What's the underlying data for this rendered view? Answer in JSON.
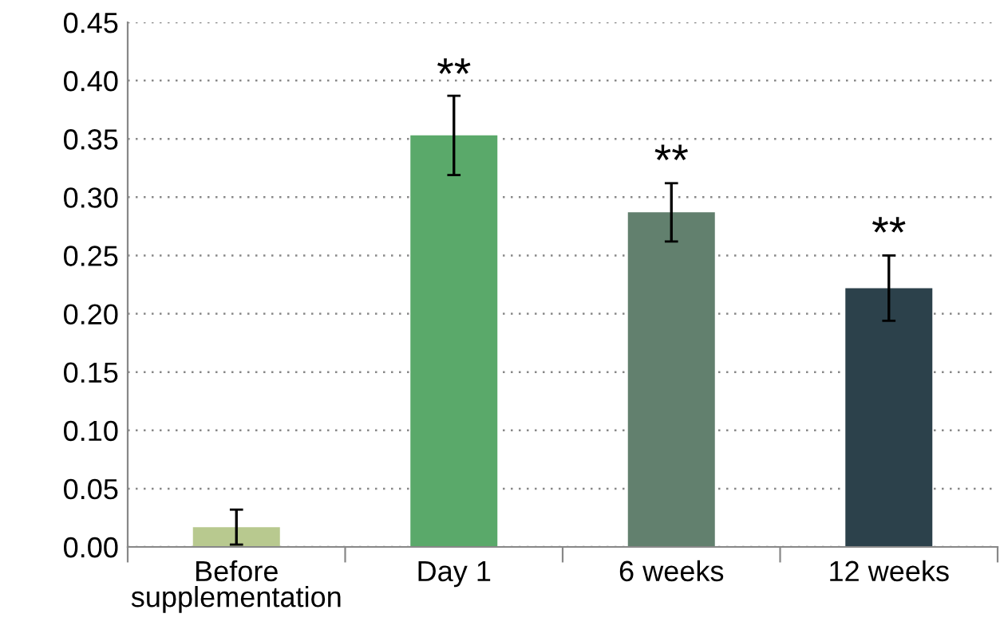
{
  "chart_data": {
    "type": "bar",
    "categories": [
      "Before\nsupplementation",
      "Day 1",
      "6 weeks",
      "12 weeks"
    ],
    "values": [
      0.017,
      0.353,
      0.287,
      0.222
    ],
    "colors": [
      "#b8c98f",
      "#5aa96a",
      "#62806e",
      "#2c414b"
    ],
    "errors": [
      0.015,
      0.034,
      0.025,
      0.028
    ],
    "annotations": [
      {
        "text": "**",
        "x": "Day 1",
        "y": 0.385
      },
      {
        "text": "**",
        "x": "6 weeks",
        "y": 0.311
      },
      {
        "text": "**",
        "x": "12 weeks",
        "y": 0.249
      }
    ],
    "ylim": [
      0,
      0.45
    ],
    "yticks": [
      {
        "value": 0,
        "label": "0.00"
      },
      {
        "value": 0.05,
        "label": "0.05"
      },
      {
        "value": 0.1,
        "label": "0.10"
      },
      {
        "value": 0.15,
        "label": "0.15"
      },
      {
        "value": 0.2,
        "label": "0.20"
      },
      {
        "value": 0.25,
        "label": "0.25"
      },
      {
        "value": 0.3,
        "label": "0.30"
      },
      {
        "value": 0.35,
        "label": "0.35"
      },
      {
        "value": 0.4,
        "label": "0.40"
      },
      {
        "value": 0.45,
        "label": "0.45"
      }
    ],
    "grid": "y"
  }
}
